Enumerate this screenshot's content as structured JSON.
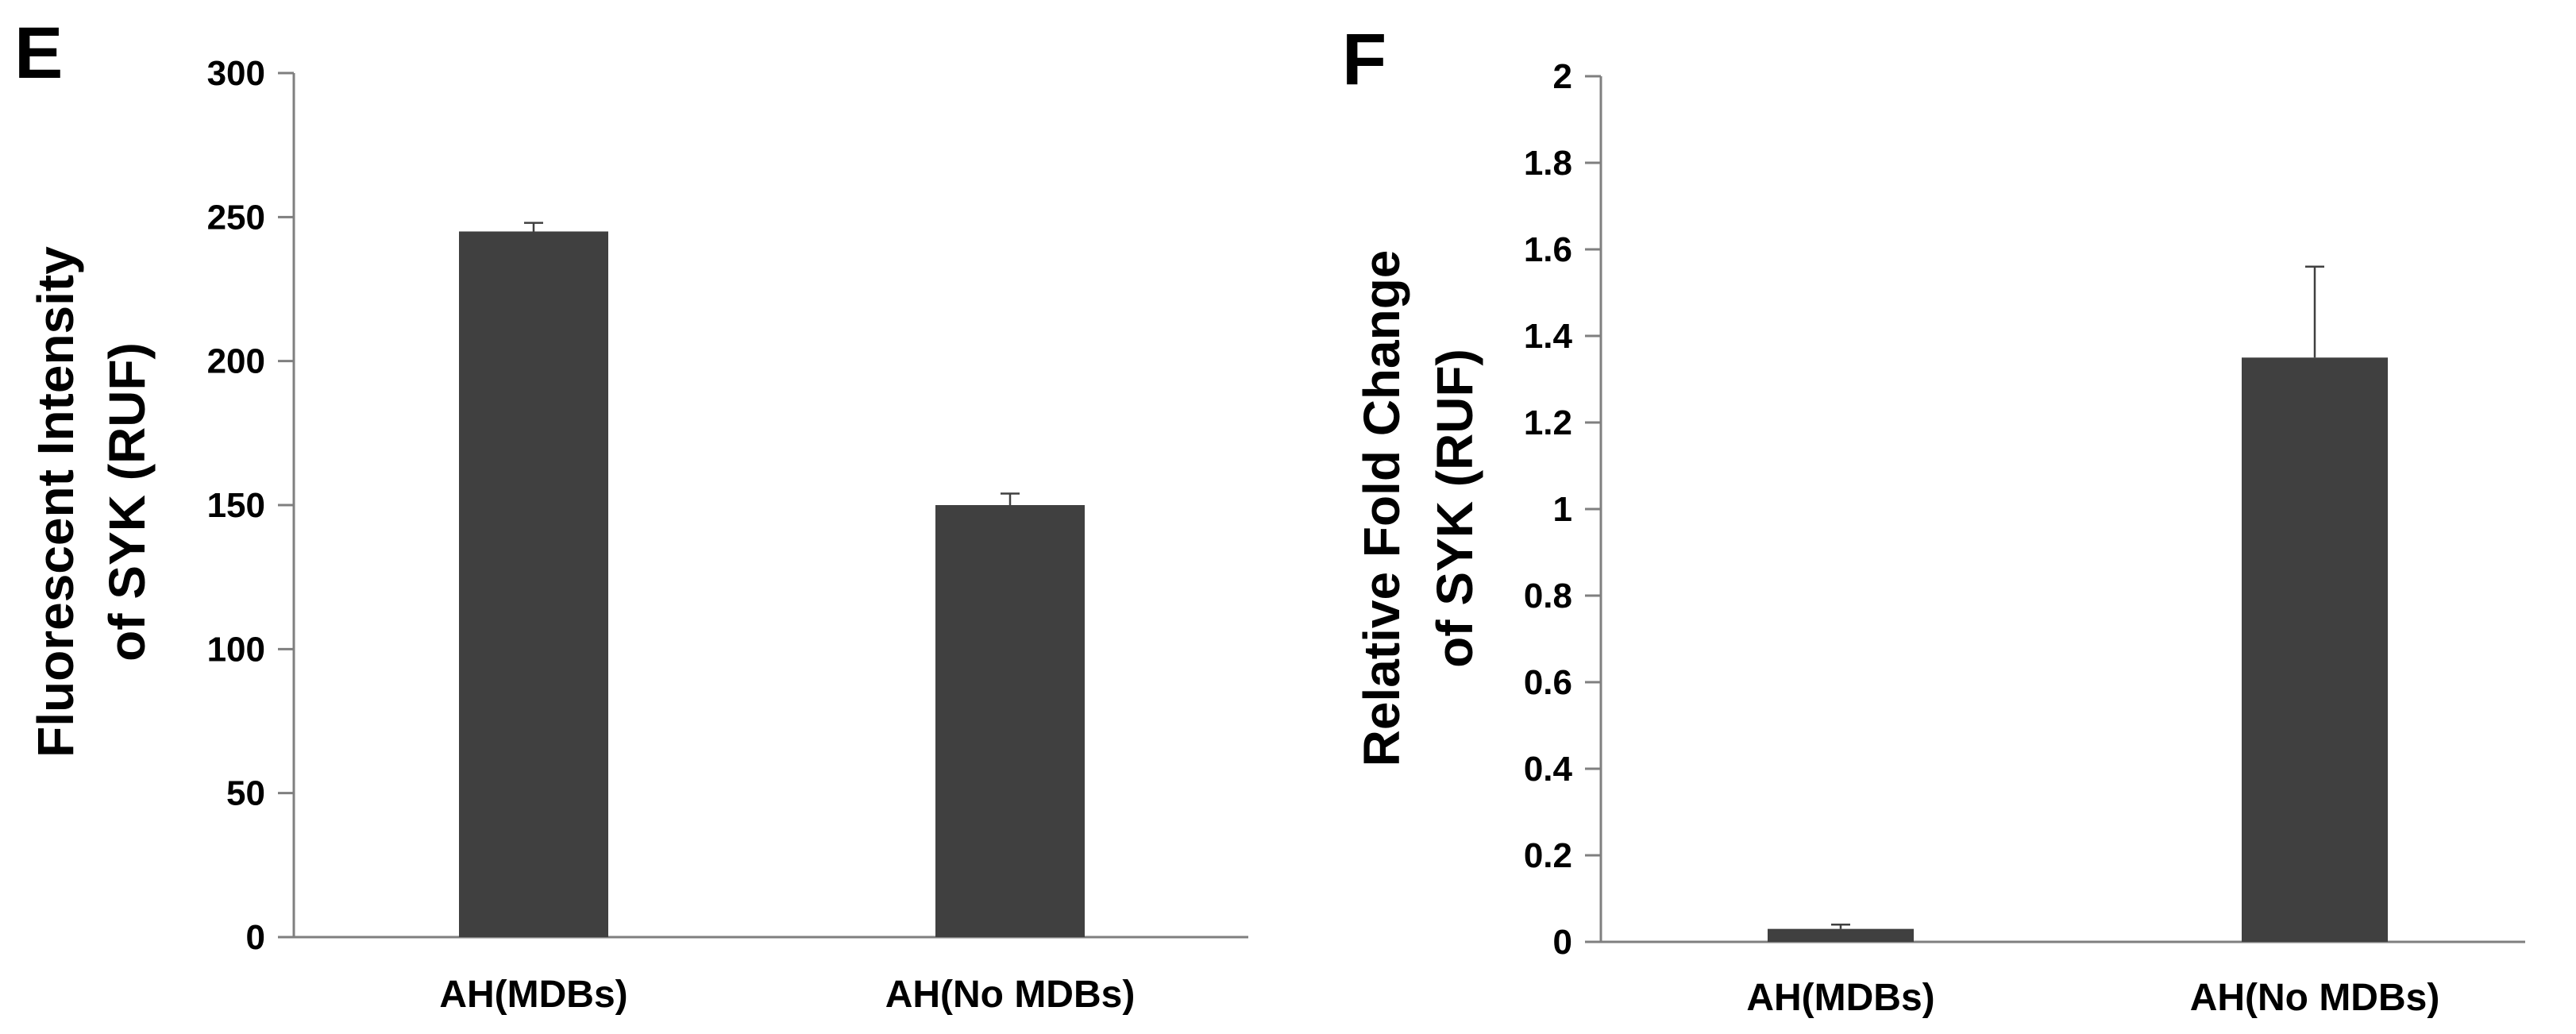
{
  "chart_data": [
    {
      "type": "bar",
      "panel": "E",
      "ylabel_lines": [
        "Fluorescent Intensity",
        "of SYK (RUF)"
      ],
      "categories": [
        "AH(MDBs)",
        "AH(No MDBs)"
      ],
      "values": [
        245,
        150
      ],
      "errors": [
        3,
        4
      ],
      "ylim": [
        0,
        300
      ],
      "yticks": [
        0,
        50,
        100,
        150,
        200,
        250,
        300
      ],
      "ytick_labels": [
        "0",
        "50",
        "100",
        "150",
        "200",
        "250",
        "300"
      ],
      "bar_color": "#404040",
      "grid": false
    },
    {
      "type": "bar",
      "panel": "F",
      "ylabel_lines": [
        "Relative Fold Change",
        "of SYK (RUF)"
      ],
      "categories": [
        "AH(MDBs)",
        "AH(No MDBs)"
      ],
      "values": [
        0.03,
        1.35
      ],
      "errors": [
        0.01,
        0.21
      ],
      "ylim": [
        0,
        2
      ],
      "yticks": [
        0,
        0.2,
        0.4,
        0.6,
        0.8,
        1,
        1.2,
        1.4,
        1.6,
        1.8,
        2
      ],
      "ytick_labels": [
        "0",
        "0.2",
        "0.4",
        "0.6",
        "0.8",
        "1",
        "1.2",
        "1.4",
        "1.6",
        "1.8",
        "2"
      ],
      "bar_color": "#404040",
      "grid": false
    }
  ]
}
